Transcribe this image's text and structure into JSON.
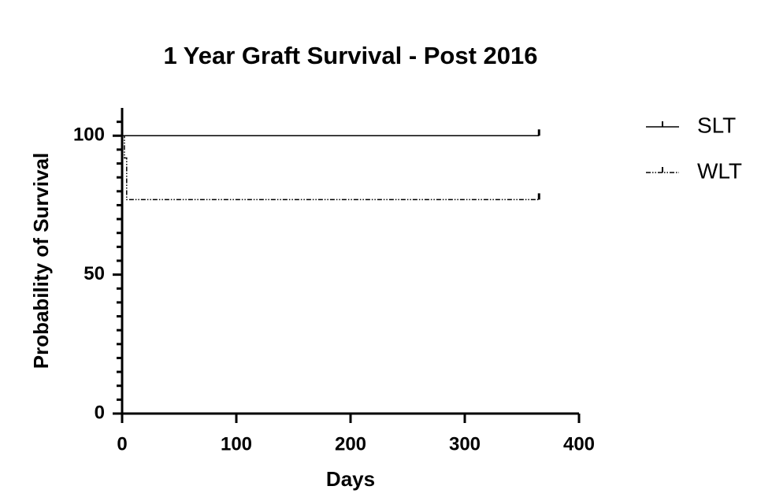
{
  "chart_data": {
    "type": "line",
    "step": true,
    "censor_marks": true,
    "title": "1 Year Graft Survival - Post 2016",
    "x_label": "Days",
    "y_label": "Probability of Survival",
    "xlim": [
      0,
      400
    ],
    "xticks": [
      0,
      100,
      200,
      300,
      400
    ],
    "ylim": [
      0,
      110
    ],
    "yticks": [
      0,
      50,
      100
    ],
    "yminorticks": [
      5,
      10,
      15,
      20,
      25,
      30,
      35,
      40,
      45,
      55,
      60,
      65,
      70,
      75,
      80,
      85,
      90,
      95,
      105
    ],
    "grid": false,
    "legend": "right",
    "series": [
      {
        "name": "SLT",
        "color": "#000000",
        "dash": "solid",
        "x": [
          0,
          365
        ],
        "values": [
          100,
          100
        ]
      },
      {
        "name": "WLT",
        "color": "#000000",
        "dash": "dash-dot-dot",
        "x": [
          0,
          2,
          4,
          365
        ],
        "values": [
          100,
          92,
          77,
          77
        ]
      }
    ]
  }
}
